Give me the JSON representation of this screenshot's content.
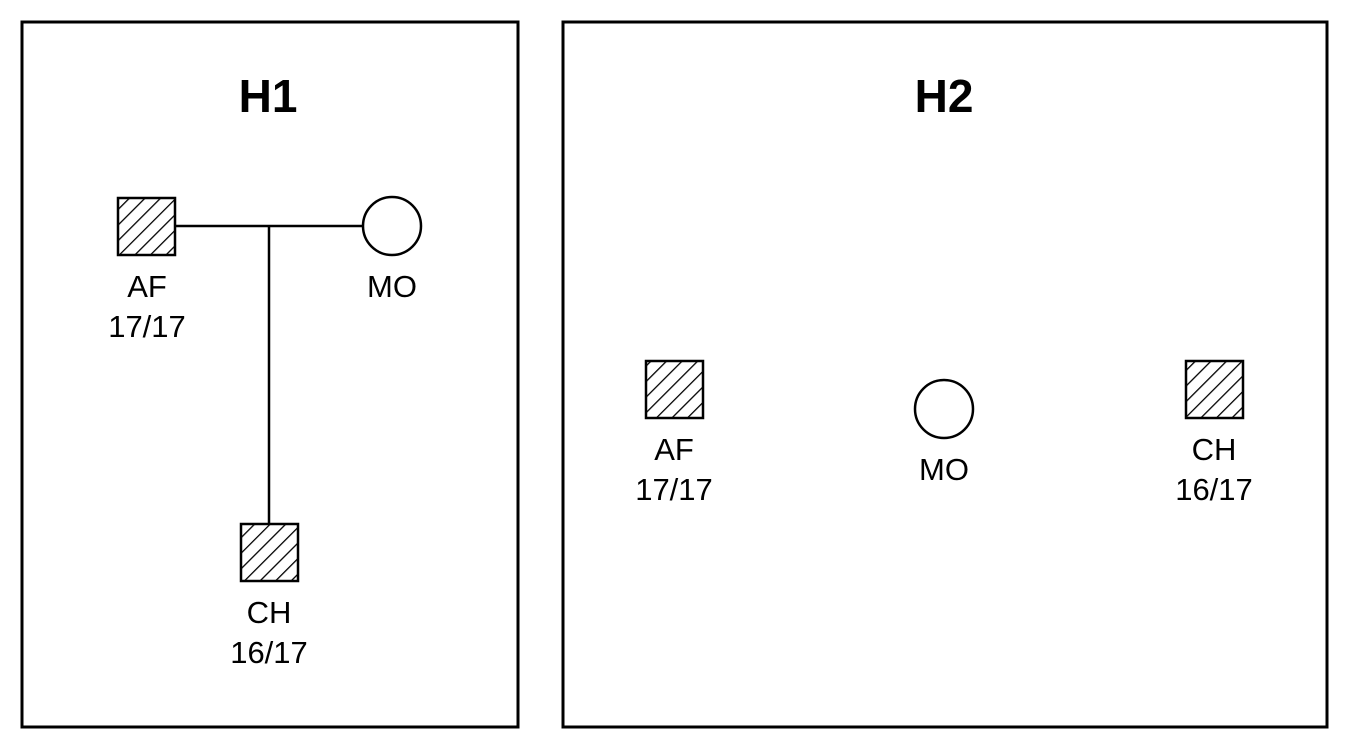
{
  "panels": [
    {
      "title": "H1",
      "individuals": [
        {
          "label": "AF",
          "genotype": "17/17",
          "sex": "male",
          "affected": true
        },
        {
          "label": "MO",
          "genotype": "",
          "sex": "female",
          "affected": false
        },
        {
          "label": "CH",
          "genotype": "16/17",
          "sex": "male",
          "affected": true
        }
      ],
      "relationships": [
        "AF-MO mating",
        "AF+MO -> CH"
      ]
    },
    {
      "title": "H2",
      "individuals": [
        {
          "label": "AF",
          "genotype": "17/17",
          "sex": "male",
          "affected": true
        },
        {
          "label": "MO",
          "genotype": "",
          "sex": "female",
          "affected": false
        },
        {
          "label": "CH",
          "genotype": "16/17",
          "sex": "male",
          "affected": true
        }
      ],
      "relationships": []
    }
  ],
  "colors": {
    "stroke": "#000000",
    "background": "#ffffff"
  },
  "symbol_fill": "diagonal-hatch"
}
